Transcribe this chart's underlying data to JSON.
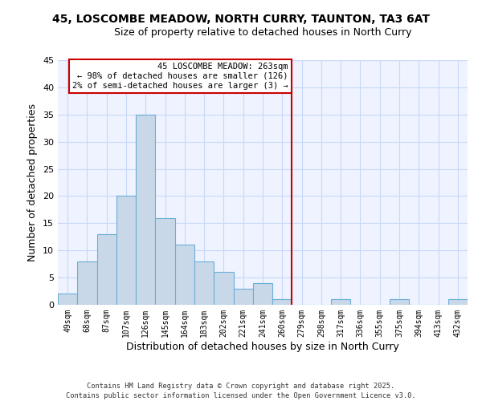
{
  "title": "45, LOSCOMBE MEADOW, NORTH CURRY, TAUNTON, TA3 6AT",
  "subtitle": "Size of property relative to detached houses in North Curry",
  "xlabel": "Distribution of detached houses by size in North Curry",
  "ylabel": "Number of detached properties",
  "bin_labels": [
    "49sqm",
    "68sqm",
    "87sqm",
    "107sqm",
    "126sqm",
    "145sqm",
    "164sqm",
    "183sqm",
    "202sqm",
    "221sqm",
    "241sqm",
    "260sqm",
    "279sqm",
    "298sqm",
    "317sqm",
    "336sqm",
    "355sqm",
    "375sqm",
    "394sqm",
    "413sqm",
    "432sqm"
  ],
  "bar_heights": [
    2,
    8,
    13,
    20,
    35,
    16,
    11,
    8,
    6,
    3,
    4,
    1,
    0,
    0,
    1,
    0,
    0,
    1,
    0,
    0,
    1
  ],
  "bar_color": "#c8d8e8",
  "bar_edge_color": "#6baed6",
  "vline_x": 11.5,
  "vline_color": "#cc0000",
  "annotation_title": "45 LOSCOMBE MEADOW: 263sqm",
  "annotation_line1": "← 98% of detached houses are smaller (126)",
  "annotation_line2": "2% of semi-detached houses are larger (3) →",
  "annotation_box_color": "#ffffff",
  "annotation_box_edge": "#cc0000",
  "ylim": [
    0,
    45
  ],
  "yticks": [
    0,
    5,
    10,
    15,
    20,
    25,
    30,
    35,
    40,
    45
  ],
  "grid_color": "#c8d8f8",
  "footer_line1": "Contains HM Land Registry data © Crown copyright and database right 2025.",
  "footer_line2": "Contains public sector information licensed under the Open Government Licence v3.0.",
  "bg_color": "#ffffff",
  "plot_bg_color": "#eef3ff"
}
